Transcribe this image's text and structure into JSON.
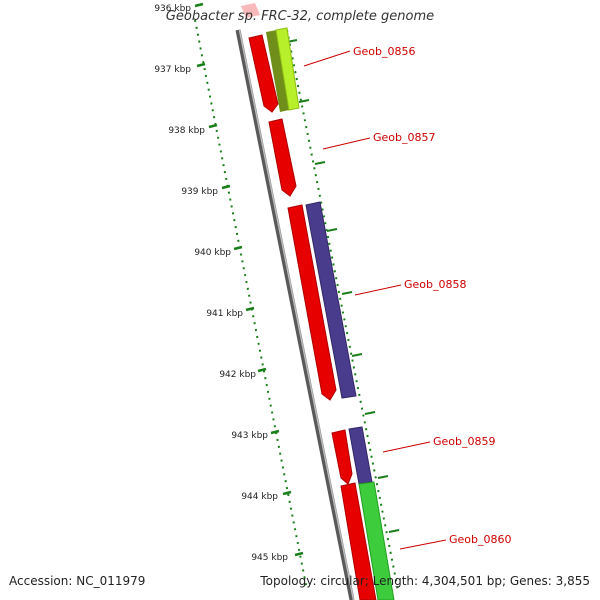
{
  "title": "Geobacter sp. FRC-32, complete genome",
  "footer": {
    "accession": "Accession: NC_011979",
    "summary": "Topology: circular; Length: 4,304,501 bp; Genes: 3,855"
  },
  "ticks": [
    "936 kbp",
    "937 kbp",
    "938 kbp",
    "939 kbp",
    "940 kbp",
    "941 kbp",
    "942 kbp",
    "943 kbp",
    "944 kbp",
    "945 kbp"
  ],
  "genes": [
    {
      "label": "Geob_0856"
    },
    {
      "label": "Geob_0857"
    },
    {
      "label": "Geob_0858"
    },
    {
      "label": "Geob_0859"
    },
    {
      "label": "Geob_0860"
    }
  ],
  "colors": {
    "backbone": "#7a7a7a",
    "gene": "#ff0000",
    "cds_purple": "#4a3c8c",
    "cds_lime": "#a8e22a",
    "cds_green": "#3ccc3c",
    "tick": "#1a7f1a",
    "label": "#cc0000"
  }
}
